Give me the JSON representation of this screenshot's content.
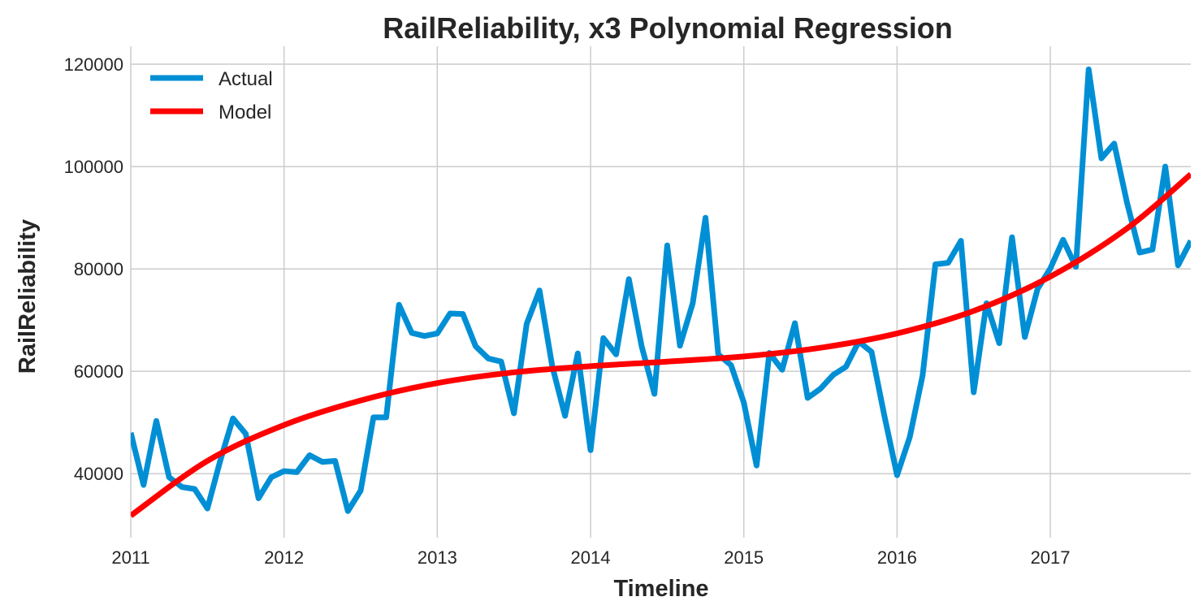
{
  "chart_data": {
    "type": "line",
    "title": "RailReliability, x3 Polynomial Regression",
    "xlabel": "Timeline",
    "ylabel": "RailReliability",
    "xlim": [
      "2011-01",
      "2017-12"
    ],
    "ylim": [
      27500,
      123500
    ],
    "x_ticks": [
      "2011",
      "2012",
      "2013",
      "2014",
      "2015",
      "2016",
      "2017"
    ],
    "y_ticks": [
      "40000",
      "60000",
      "80000",
      "100000",
      "120000"
    ],
    "grid": true,
    "legend": {
      "placement": "top-left",
      "entries": [
        "Actual",
        "Model"
      ]
    },
    "colors": {
      "Actual": "#008fd5",
      "Model": "#ff0000"
    },
    "series": [
      {
        "name": "Actual",
        "x": [
          "2011-01",
          "2011-02",
          "2011-03",
          "2011-04",
          "2011-05",
          "2011-06",
          "2011-07",
          "2011-08",
          "2011-09",
          "2011-10",
          "2011-11",
          "2011-12",
          "2012-01",
          "2012-02",
          "2012-03",
          "2012-04",
          "2012-05",
          "2012-06",
          "2012-07",
          "2012-08",
          "2012-09",
          "2012-10",
          "2012-11",
          "2012-12",
          "2013-01",
          "2013-02",
          "2013-03",
          "2013-04",
          "2013-05",
          "2013-06",
          "2013-07",
          "2013-08",
          "2013-09",
          "2013-10",
          "2013-11",
          "2013-12",
          "2014-01",
          "2014-02",
          "2014-03",
          "2014-04",
          "2014-05",
          "2014-06",
          "2014-07",
          "2014-08",
          "2014-09",
          "2014-10",
          "2014-11",
          "2014-12",
          "2015-01",
          "2015-02",
          "2015-03",
          "2015-04",
          "2015-05",
          "2015-06",
          "2015-07",
          "2015-08",
          "2015-09",
          "2015-10",
          "2015-11",
          "2015-12",
          "2016-01",
          "2016-02",
          "2016-03",
          "2016-04",
          "2016-05",
          "2016-06",
          "2016-07",
          "2016-08",
          "2016-09",
          "2016-10",
          "2016-11",
          "2016-12",
          "2017-01",
          "2017-02",
          "2017-03",
          "2017-04",
          "2017-05",
          "2017-06",
          "2017-07",
          "2017-08",
          "2017-09",
          "2017-10",
          "2017-11",
          "2017-12"
        ],
        "values": [
          48000,
          37800,
          50300,
          39300,
          37400,
          37000,
          33200,
          42500,
          50800,
          47800,
          35200,
          39300,
          40500,
          40300,
          43600,
          42300,
          42500,
          32700,
          36700,
          51000,
          51000,
          73000,
          67500,
          66900,
          67400,
          71300,
          71200,
          64900,
          62500,
          61900,
          51800,
          69300,
          75800,
          61000,
          51300,
          63500,
          44600,
          66500,
          63300,
          78000,
          64900,
          55600,
          84600,
          65000,
          73300,
          90000,
          63300,
          61200,
          53900,
          41600,
          63600,
          60300,
          69400,
          54800,
          56600,
          59300,
          60900,
          65800,
          63800,
          51400,
          39700,
          47200,
          59200,
          80900,
          81200,
          85500,
          55900,
          73300,
          65500,
          86200,
          66700,
          76100,
          80100,
          85700,
          80400,
          119000,
          101600,
          104500,
          93000,
          83200,
          83800,
          100000,
          80700,
          85500
        ]
      },
      {
        "name": "Model",
        "x": [
          "2011-01",
          "2011-07",
          "2012-01",
          "2012-07",
          "2013-01",
          "2013-07",
          "2014-01",
          "2014-07",
          "2015-01",
          "2015-07",
          "2016-01",
          "2016-07",
          "2017-01",
          "2017-07",
          "2017-12"
        ],
        "values": [
          31800,
          42500,
          49500,
          54300,
          57700,
          59800,
          61000,
          61900,
          62900,
          64600,
          67400,
          71800,
          78500,
          87900,
          98500
        ]
      }
    ]
  }
}
